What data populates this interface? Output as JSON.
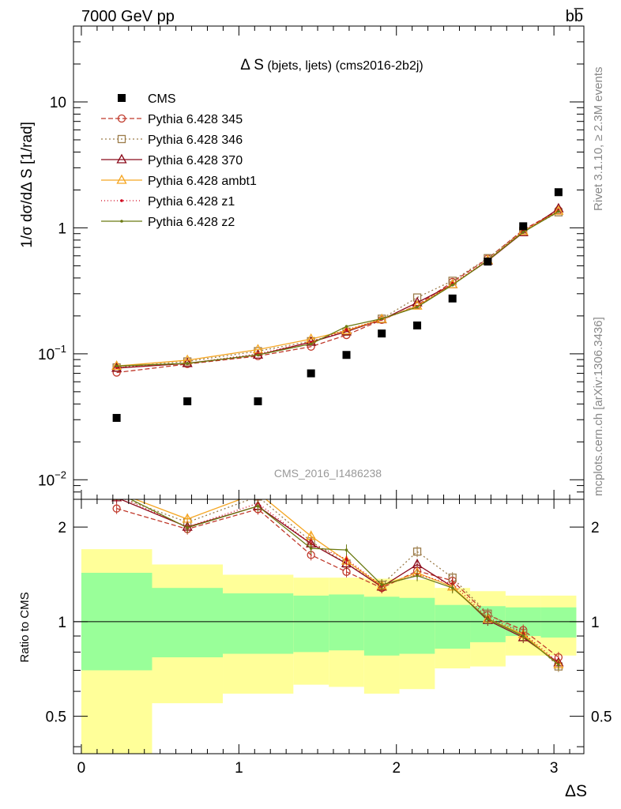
{
  "header": {
    "left_label": "7000 GeV pp",
    "right_label": "bb̅"
  },
  "side_text": {
    "top": "Rivet 3.1.10, ≥ 2.3M events",
    "bottom": "mcplots.cern.ch [arXiv:1306.3436]"
  },
  "chart_data": {
    "type": "scatter",
    "title": "Δ S (bjets, ljets) (cms2016-2b2j)",
    "title_main": "Δ S",
    "title_sub": " (bjets, ljets) (cms2016-2b2j)",
    "watermark": "CMS_2016_I1486238",
    "xlabel": "ΔS",
    "ylabel": "1/σ dσ/dΔ S [1/rad]",
    "ratio_ylabel": "Ratio to CMS",
    "xlim": [
      -0.05,
      3.19
    ],
    "ylim": [
      0.007,
      40
    ],
    "yscale": "log",
    "ratio_ylim": [
      0.38,
      2.45
    ],
    "ratio_yscale": "log",
    "x_ticks": [
      0,
      1,
      2,
      3
    ],
    "y_tick_labels": [
      {
        "value": 10,
        "mantissa": "10",
        "exp": ""
      },
      {
        "value": 1,
        "mantissa": "1",
        "exp": ""
      },
      {
        "value": 0.1,
        "mantissa": "10",
        "exp": "−1"
      },
      {
        "value": 0.01,
        "mantissa": "10",
        "exp": "−2"
      }
    ],
    "ratio_ticks": [
      {
        "value": 2,
        "label": "2"
      },
      {
        "value": 1,
        "label": "1"
      },
      {
        "value": 0.5,
        "label": "0.5"
      }
    ],
    "x": [
      0.224,
      0.673,
      1.121,
      1.458,
      1.683,
      1.907,
      2.132,
      2.356,
      2.58,
      2.805,
      3.029
    ],
    "bin_edges": [
      0,
      0.449,
      0.898,
      1.346,
      1.571,
      1.795,
      2.019,
      2.244,
      2.468,
      2.693,
      2.917,
      3.142
    ],
    "data": {
      "name": "CMS",
      "values": [
        0.031,
        0.042,
        0.042,
        0.07,
        0.098,
        0.145,
        0.168,
        0.275,
        0.54,
        1.03,
        1.92
      ],
      "band_inner_up": [
        1.43,
        1.28,
        1.23,
        1.21,
        1.22,
        1.2,
        1.19,
        1.13,
        1.12,
        1.11,
        1.11
      ],
      "band_inner_down": [
        0.7,
        0.77,
        0.79,
        0.8,
        0.81,
        0.78,
        0.79,
        0.82,
        0.86,
        0.9,
        0.89
      ],
      "band_outer_up": [
        1.7,
        1.52,
        1.41,
        1.38,
        1.38,
        1.37,
        1.36,
        1.28,
        1.25,
        1.21,
        1.21
      ],
      "band_outer_down": [
        0.38,
        0.55,
        0.59,
        0.63,
        0.62,
        0.59,
        0.61,
        0.71,
        0.72,
        0.78,
        0.78
      ]
    },
    "series": [
      {
        "name": "Pythia 6.428 345",
        "color": "#c0392b",
        "dash": "6,3",
        "marker": "circle",
        "values": [
          0.071,
          0.083,
          0.096,
          0.114,
          0.141,
          0.186,
          0.243,
          0.372,
          0.57,
          0.965,
          1.38
        ],
        "ratio": [
          2.29,
          1.97,
          2.28,
          1.63,
          1.44,
          1.28,
          1.45,
          1.35,
          1.05,
          0.94,
          0.77
        ]
      },
      {
        "name": "Pythia 6.428 346",
        "color": "#9c7c4a",
        "dash": "2,3",
        "marker": "square",
        "values": [
          0.078,
          0.087,
          0.105,
          0.126,
          0.15,
          0.19,
          0.28,
          0.38,
          0.575,
          0.945,
          1.33
        ],
        "ratio": [
          2.51,
          2.07,
          2.5,
          1.8,
          1.53,
          1.31,
          1.67,
          1.38,
          1.06,
          0.92,
          0.72
        ]
      },
      {
        "name": "Pythia 6.428 370",
        "color": "#8b0a1a",
        "dash": "",
        "marker": "triangle",
        "values": [
          0.077,
          0.084,
          0.098,
          0.124,
          0.15,
          0.187,
          0.255,
          0.355,
          0.548,
          0.918,
          1.42
        ],
        "ratio": [
          2.48,
          2.0,
          2.33,
          1.77,
          1.53,
          1.29,
          1.52,
          1.29,
          1.01,
          0.89,
          0.74
        ]
      },
      {
        "name": "Pythia 6.428 ambt1",
        "color": "#f5a623",
        "dash": "",
        "marker": "triangle",
        "values": [
          0.08,
          0.089,
          0.108,
          0.131,
          0.153,
          0.188,
          0.24,
          0.355,
          0.553,
          0.938,
          1.36
        ],
        "ratio": [
          2.58,
          2.12,
          2.57,
          1.87,
          1.56,
          1.3,
          1.43,
          1.29,
          1.02,
          0.91,
          0.73
        ]
      },
      {
        "name": "Pythia 6.428 z1",
        "color": "#d0021b",
        "dash": "1,3",
        "marker": "dot",
        "values": [
          0.078,
          0.084,
          0.1,
          0.124,
          0.155,
          0.188,
          0.237,
          0.362,
          0.555,
          0.948,
          1.37
        ],
        "ratio": [
          2.52,
          2.0,
          2.38,
          1.77,
          1.58,
          1.3,
          1.41,
          1.32,
          1.03,
          0.92,
          0.74
        ]
      },
      {
        "name": "Pythia 6.428 z2",
        "color": "#6b7a12",
        "dash": "",
        "marker": "dot",
        "values": [
          0.08,
          0.084,
          0.098,
          0.12,
          0.165,
          0.19,
          0.235,
          0.352,
          0.552,
          0.925,
          1.35
        ],
        "ratio": [
          2.58,
          1.99,
          2.33,
          1.71,
          1.69,
          1.31,
          1.4,
          1.28,
          1.02,
          0.9,
          0.73
        ]
      }
    ]
  }
}
